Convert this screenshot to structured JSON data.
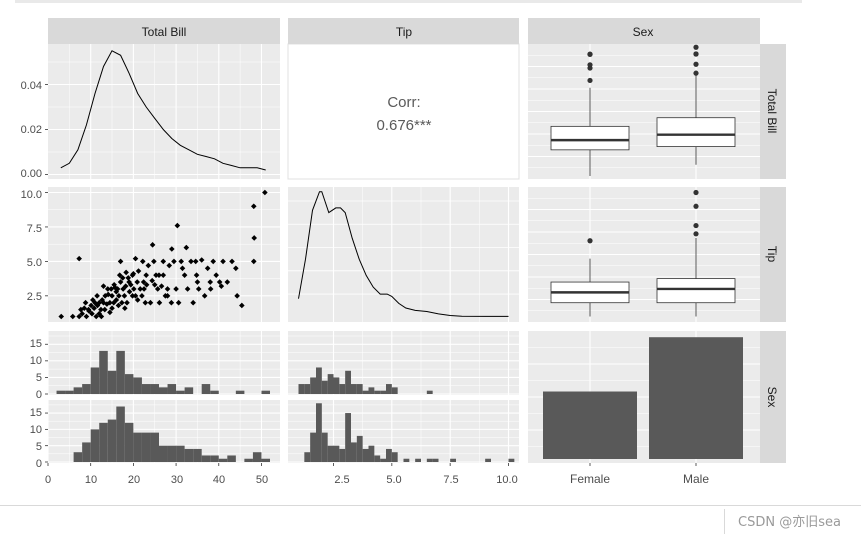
{
  "chart_data": {
    "type": "pairs",
    "variables": [
      "Total Bill",
      "Tip",
      "Sex"
    ],
    "correlation": {
      "label": "Corr:",
      "value": "0.676***"
    },
    "total_bill_density": {
      "x": [
        3,
        5,
        7,
        9,
        11,
        13,
        15,
        17,
        19,
        21,
        23,
        25,
        27,
        29,
        31,
        33,
        35,
        37,
        39,
        41,
        43,
        45,
        47,
        49,
        51
      ],
      "y": [
        0.003,
        0.005,
        0.011,
        0.022,
        0.036,
        0.048,
        0.055,
        0.053,
        0.045,
        0.036,
        0.03,
        0.025,
        0.02,
        0.016,
        0.013,
        0.011,
        0.009,
        0.008,
        0.007,
        0.005,
        0.004,
        0.003,
        0.003,
        0.003,
        0.002
      ],
      "ylim": [
        -0.002,
        0.058
      ],
      "yticks": [
        0.0,
        0.02,
        0.04
      ],
      "ytick_labels": [
        "0.00",
        "0.02",
        "0.04"
      ]
    },
    "tip_density": {
      "x": [
        1.0,
        1.3,
        1.6,
        1.9,
        2.0,
        2.3,
        2.6,
        2.8,
        3.0,
        3.3,
        3.6,
        3.9,
        4.2,
        4.5,
        4.8,
        5.0,
        5.3,
        5.6,
        6.0,
        6.5,
        7.0,
        7.5,
        8.0,
        9.0,
        10.0
      ],
      "y": [
        0.08,
        0.25,
        0.46,
        0.54,
        0.54,
        0.45,
        0.47,
        0.47,
        0.45,
        0.34,
        0.25,
        0.18,
        0.13,
        0.1,
        0.1,
        0.09,
        0.06,
        0.04,
        0.03,
        0.025,
        0.015,
        0.008,
        0.005,
        0.004,
        0.004
      ],
      "ylim": [
        -0.02,
        0.56
      ]
    },
    "scatter": {
      "x_var": "Total Bill",
      "y_var": "Tip",
      "points": [
        [
          3.1,
          1.0
        ],
        [
          5.8,
          1.0
        ],
        [
          7.3,
          1.0
        ],
        [
          7.7,
          1.5
        ],
        [
          8.0,
          1.2
        ],
        [
          8.5,
          1.6
        ],
        [
          9.0,
          1.0
        ],
        [
          9.6,
          1.4
        ],
        [
          10.1,
          1.8
        ],
        [
          10.3,
          1.2
        ],
        [
          10.8,
          1.6
        ],
        [
          11.0,
          2.0
        ],
        [
          11.3,
          1.0
        ],
        [
          11.6,
          1.8
        ],
        [
          12.0,
          2.0
        ],
        [
          12.4,
          1.5
        ],
        [
          12.7,
          2.2
        ],
        [
          13.0,
          2.0
        ],
        [
          13.4,
          2.5
        ],
        [
          13.8,
          1.9
        ],
        [
          14.1,
          2.6
        ],
        [
          14.5,
          2.0
        ],
        [
          14.8,
          3.0
        ],
        [
          15.0,
          2.5
        ],
        [
          15.4,
          2.0
        ],
        [
          15.7,
          3.1
        ],
        [
          16.0,
          2.2
        ],
        [
          16.3,
          3.0
        ],
        [
          16.6,
          2.5
        ],
        [
          17.0,
          3.5
        ],
        [
          17.3,
          2.0
        ],
        [
          17.6,
          3.0
        ],
        [
          17.9,
          2.5
        ],
        [
          18.2,
          3.2
        ],
        [
          18.5,
          2.0
        ],
        [
          18.8,
          3.8
        ],
        [
          19.1,
          2.8
        ],
        [
          19.4,
          3.3
        ],
        [
          19.8,
          4.0
        ],
        [
          20.1,
          3.0
        ],
        [
          20.5,
          2.5
        ],
        [
          20.9,
          3.5
        ],
        [
          21.2,
          4.3
        ],
        [
          21.6,
          3.0
        ],
        [
          22.0,
          2.5
        ],
        [
          22.4,
          3.5
        ],
        [
          22.8,
          2.0
        ],
        [
          23.1,
          3.3
        ],
        [
          23.5,
          4.7
        ],
        [
          24.0,
          2.0
        ],
        [
          24.4,
          3.6
        ],
        [
          24.8,
          5.0
        ],
        [
          25.3,
          4.0
        ],
        [
          25.7,
          3.0
        ],
        [
          26.1,
          2.0
        ],
        [
          26.6,
          3.2
        ],
        [
          27.0,
          4.0
        ],
        [
          27.5,
          2.5
        ],
        [
          28.0,
          3.0
        ],
        [
          28.4,
          4.7
        ],
        [
          28.9,
          2.0
        ],
        [
          29.5,
          5.0
        ],
        [
          30.0,
          3.0
        ],
        [
          30.6,
          2.0
        ],
        [
          31.2,
          5.0
        ],
        [
          32.0,
          4.0
        ],
        [
          32.7,
          3.0
        ],
        [
          33.5,
          5.0
        ],
        [
          34.0,
          2.0
        ],
        [
          34.8,
          4.0
        ],
        [
          35.3,
          3.0
        ],
        [
          36.0,
          5.1
        ],
        [
          36.7,
          2.5
        ],
        [
          37.4,
          4.5
        ],
        [
          38.1,
          3.0
        ],
        [
          38.7,
          5.0
        ],
        [
          39.4,
          4.0
        ],
        [
          40.2,
          3.5
        ],
        [
          41.0,
          5.0
        ],
        [
          42.0,
          3.5
        ],
        [
          43.1,
          5.0
        ],
        [
          44.3,
          2.5
        ],
        [
          45.4,
          1.8
        ],
        [
          48.2,
          9.0
        ],
        [
          48.3,
          6.7
        ],
        [
          50.8,
          10.0
        ],
        [
          48.2,
          5.0
        ],
        [
          7.3,
          5.2
        ],
        [
          15.0,
          1.6
        ],
        [
          16.8,
          4.0
        ],
        [
          18.3,
          4.2
        ],
        [
          13.3,
          1.5
        ],
        [
          12.0,
          1.2
        ],
        [
          14.0,
          3.0
        ],
        [
          16.0,
          2.8
        ],
        [
          20.0,
          4.1
        ],
        [
          22.2,
          5.0
        ],
        [
          9.5,
          1.5
        ],
        [
          11.5,
          2.5
        ],
        [
          13.0,
          3.2
        ],
        [
          15.5,
          3.3
        ],
        [
          17.5,
          3.8
        ],
        [
          19.0,
          3.5
        ],
        [
          21.0,
          2.2
        ],
        [
          23.0,
          4.0
        ],
        [
          25.0,
          3.3
        ],
        [
          27.0,
          5.0
        ],
        [
          29.0,
          5.9
        ],
        [
          30.3,
          7.6
        ],
        [
          32.4,
          6.0
        ],
        [
          34.6,
          5.0
        ],
        [
          40.6,
          3.2
        ],
        [
          24.5,
          6.2
        ],
        [
          18.0,
          1.6
        ],
        [
          16.5,
          1.8
        ],
        [
          14.5,
          1.3
        ],
        [
          12.5,
          1.0
        ],
        [
          10.5,
          2.2
        ],
        [
          8.8,
          2.0
        ],
        [
          19.8,
          2.5
        ],
        [
          22.5,
          3.0
        ],
        [
          26.0,
          4.0
        ],
        [
          28.0,
          2.5
        ],
        [
          31.5,
          4.5
        ],
        [
          35.0,
          3.5
        ],
        [
          38.0,
          3.5
        ],
        [
          44.0,
          4.5
        ],
        [
          17.0,
          5.0
        ],
        [
          20.5,
          5.2
        ]
      ],
      "xlim": [
        0,
        52
      ],
      "ylim": [
        0.6,
        10.4
      ],
      "xticks": [
        0,
        10,
        20,
        30,
        40,
        50
      ],
      "yticks": [
        2.5,
        5.0,
        7.5,
        10.0
      ],
      "ytick_labels": [
        "2.5",
        "5.0",
        "7.5",
        "10.0"
      ]
    },
    "box_total_bill": {
      "ylim": [
        2,
        52
      ],
      "groups": [
        {
          "name": "Female",
          "min": 3.1,
          "q1": 12.8,
          "median": 16.4,
          "q3": 21.5,
          "max": 35.8,
          "outliers": [
            38.5,
            43.1,
            44.3,
            48.2,
            48.2
          ]
        },
        {
          "name": "Male",
          "min": 7.3,
          "q1": 14.0,
          "median": 18.4,
          "q3": 24.7,
          "max": 40.5,
          "outliers": [
            41.2,
            44.5,
            48.3,
            48.3,
            50.8
          ]
        }
      ]
    },
    "box_tip": {
      "ylim": [
        0.6,
        10.4
      ],
      "groups": [
        {
          "name": "Female",
          "min": 1.0,
          "q1": 2.0,
          "median": 2.75,
          "q3": 3.5,
          "max": 5.2,
          "outliers": [
            6.5
          ]
        },
        {
          "name": "Male",
          "min": 1.0,
          "q1": 2.0,
          "median": 3.0,
          "q3": 3.75,
          "max": 6.7,
          "outliers": [
            7.0,
            7.6,
            9.0,
            10.0
          ]
        }
      ]
    },
    "bar_sex": {
      "categories": [
        "Female",
        "Male"
      ],
      "values": [
        87,
        157
      ],
      "ylim": [
        0,
        165
      ]
    },
    "hist_total_bill": {
      "xlim": [
        0,
        52
      ],
      "ylim": [
        0,
        19
      ],
      "yticks": [
        0,
        5,
        10,
        15
      ],
      "groups": [
        {
          "name": "Female",
          "bins": [
            [
              2,
              4,
              1
            ],
            [
              4,
              6,
              1
            ],
            [
              6,
              8,
              2
            ],
            [
              8,
              10,
              3
            ],
            [
              10,
              12,
              8
            ],
            [
              12,
              14,
              13
            ],
            [
              14,
              16,
              7
            ],
            [
              16,
              18,
              13
            ],
            [
              18,
              20,
              6
            ],
            [
              20,
              22,
              5
            ],
            [
              22,
              24,
              3
            ],
            [
              24,
              26,
              3
            ],
            [
              26,
              28,
              2
            ],
            [
              28,
              30,
              3
            ],
            [
              30,
              32,
              1
            ],
            [
              32,
              34,
              2
            ],
            [
              34,
              36,
              0
            ],
            [
              36,
              38,
              3
            ],
            [
              38,
              40,
              1
            ],
            [
              40,
              42,
              0
            ],
            [
              42,
              44,
              0
            ],
            [
              44,
              46,
              1
            ],
            [
              46,
              48,
              0
            ],
            [
              48,
              50,
              0
            ],
            [
              50,
              52,
              1
            ]
          ]
        },
        {
          "name": "Male",
          "bins": [
            [
              6,
              8,
              3
            ],
            [
              8,
              10,
              6
            ],
            [
              10,
              12,
              10
            ],
            [
              12,
              14,
              12
            ],
            [
              14,
              16,
              13
            ],
            [
              16,
              18,
              17
            ],
            [
              18,
              20,
              12
            ],
            [
              20,
              22,
              9
            ],
            [
              22,
              24,
              9
            ],
            [
              24,
              26,
              9
            ],
            [
              26,
              28,
              5
            ],
            [
              28,
              30,
              5
            ],
            [
              30,
              32,
              5
            ],
            [
              32,
              34,
              4
            ],
            [
              34,
              36,
              4
            ],
            [
              36,
              38,
              2
            ],
            [
              38,
              40,
              2
            ],
            [
              40,
              42,
              1
            ],
            [
              42,
              44,
              2
            ],
            [
              44,
              46,
              0
            ],
            [
              46,
              48,
              1
            ],
            [
              48,
              50,
              3
            ],
            [
              50,
              52,
              1
            ]
          ]
        }
      ]
    },
    "hist_tip": {
      "xlim": [
        0.55,
        10.45
      ],
      "ylim": [
        0,
        19
      ],
      "groups": [
        {
          "name": "Female",
          "bins": [
            [
              1.0,
              1.25,
              3
            ],
            [
              1.25,
              1.5,
              3
            ],
            [
              1.5,
              1.75,
              5
            ],
            [
              1.75,
              2.0,
              8
            ],
            [
              2.0,
              2.25,
              4
            ],
            [
              2.25,
              2.5,
              6
            ],
            [
              2.5,
              2.75,
              5
            ],
            [
              2.75,
              3.0,
              3
            ],
            [
              3.0,
              3.25,
              7
            ],
            [
              3.25,
              3.5,
              3
            ],
            [
              3.5,
              3.75,
              3
            ],
            [
              3.75,
              4.0,
              1
            ],
            [
              4.0,
              4.25,
              2
            ],
            [
              4.25,
              4.5,
              1
            ],
            [
              4.5,
              4.75,
              1
            ],
            [
              4.75,
              5.0,
              3
            ],
            [
              5.0,
              5.25,
              2
            ],
            [
              6.5,
              6.75,
              1
            ]
          ]
        },
        {
          "name": "Male",
          "bins": [
            [
              1.25,
              1.5,
              3
            ],
            [
              1.5,
              1.75,
              9
            ],
            [
              1.75,
              2.0,
              18
            ],
            [
              2.0,
              2.25,
              9
            ],
            [
              2.25,
              2.5,
              5
            ],
            [
              2.5,
              2.75,
              5
            ],
            [
              2.75,
              3.0,
              4
            ],
            [
              3.0,
              3.25,
              15
            ],
            [
              3.25,
              3.5,
              6
            ],
            [
              3.5,
              3.75,
              8
            ],
            [
              3.75,
              4.0,
              4
            ],
            [
              4.0,
              4.25,
              5
            ],
            [
              4.25,
              4.5,
              2
            ],
            [
              4.5,
              4.75,
              1
            ],
            [
              4.75,
              5.0,
              4
            ],
            [
              5.0,
              5.25,
              3
            ],
            [
              5.5,
              5.75,
              1
            ],
            [
              6.0,
              6.25,
              1
            ],
            [
              6.5,
              6.75,
              1
            ],
            [
              6.75,
              7.0,
              1
            ],
            [
              7.5,
              7.75,
              1
            ],
            [
              9.0,
              9.25,
              1
            ],
            [
              10.0,
              10.25,
              1
            ]
          ]
        }
      ]
    },
    "bottom_axis": {
      "total_bill_ticks": [
        0,
        10,
        20,
        30,
        40,
        50
      ],
      "total_bill_labels": [
        "0",
        "10",
        "20",
        "30",
        "40",
        "50"
      ],
      "tip_ticks": [
        2.5,
        5.0,
        7.5,
        10.0
      ],
      "tip_labels": [
        "2.5",
        "5.0",
        "7.5",
        "10.0"
      ],
      "sex_labels": [
        "Female",
        "Male"
      ]
    },
    "hist_ytick_labels": [
      "0",
      "5",
      "10",
      "15"
    ]
  },
  "watermark": "CSDN @亦旧sea"
}
